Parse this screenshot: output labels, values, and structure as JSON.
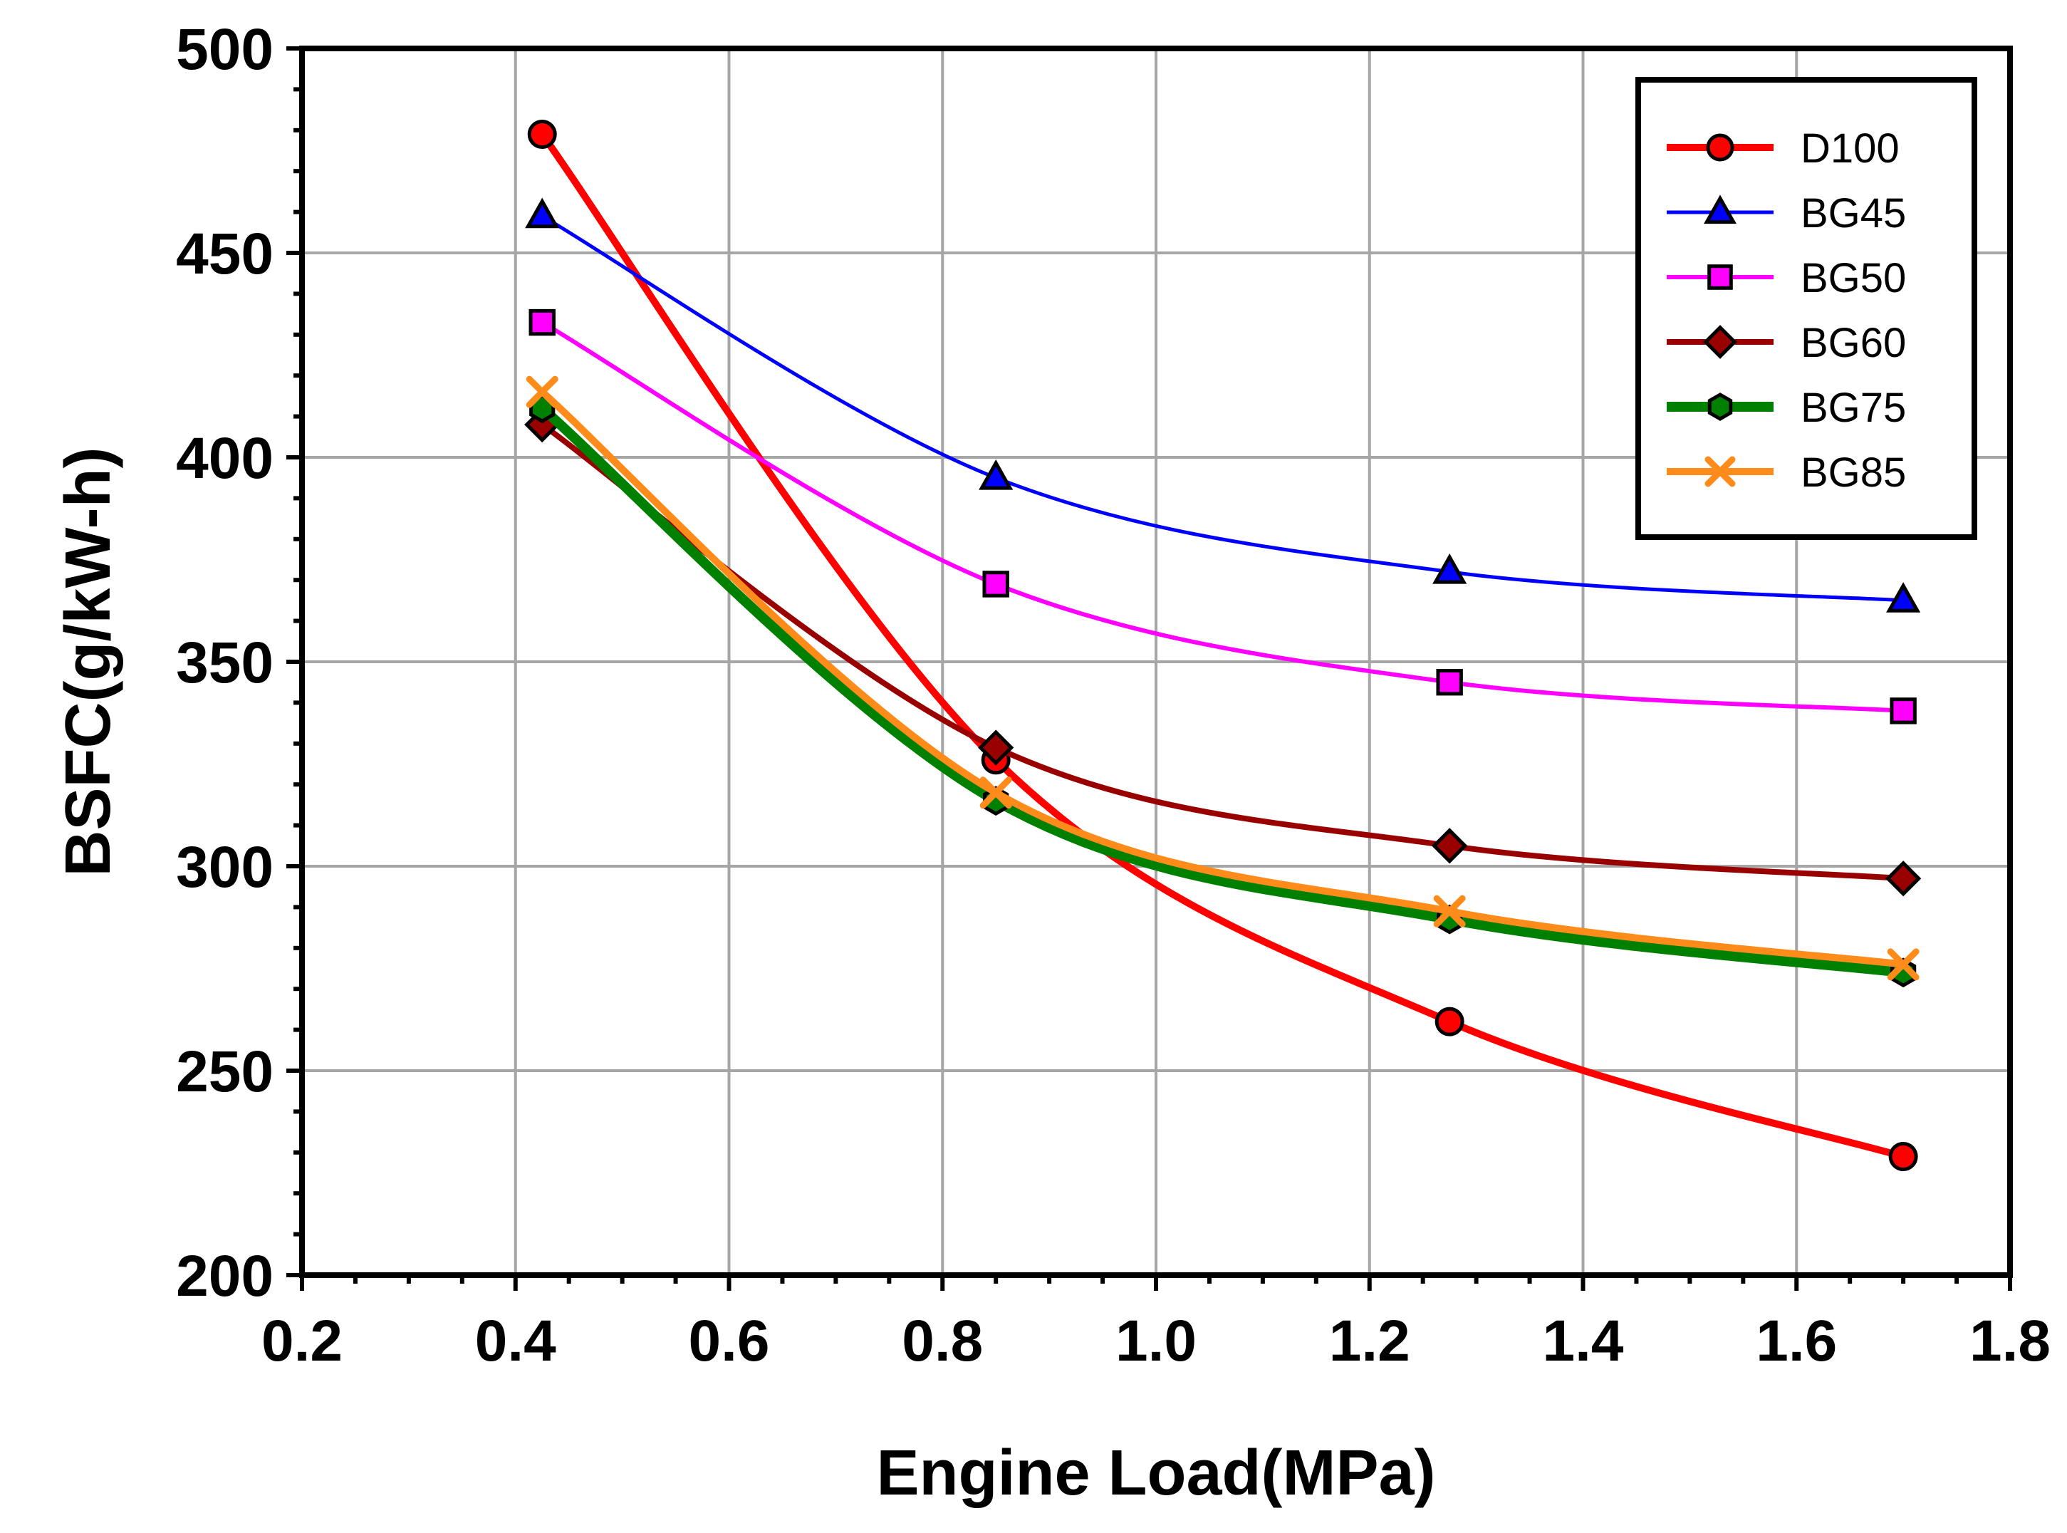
{
  "chart_data": {
    "type": "line",
    "title": "",
    "xlabel": "Engine Load(MPa)",
    "ylabel": "BSFC(g/kW-h)",
    "xlim": [
      0.2,
      1.8
    ],
    "ylim": [
      200,
      500
    ],
    "xticks": [
      "0.2",
      "0.4",
      "0.6",
      "0.8",
      "1.0",
      "1.2",
      "1.4",
      "1.6",
      "1.8"
    ],
    "yticks": [
      "200",
      "250",
      "300",
      "350",
      "400",
      "450",
      "500"
    ],
    "grid": true,
    "legend_position": "top-right",
    "series": [
      {
        "name": "D100",
        "color": "#ff0000",
        "marker": "circle",
        "x": [
          0.425,
          0.85,
          1.275,
          1.7
        ],
        "values": [
          479,
          326,
          262,
          229
        ]
      },
      {
        "name": "BG45",
        "color": "#0000ff",
        "marker": "triangle",
        "x": [
          0.425,
          0.85,
          1.275,
          1.7
        ],
        "values": [
          459,
          395,
          372,
          365
        ]
      },
      {
        "name": "BG50",
        "color": "#ff00ff",
        "marker": "square",
        "x": [
          0.425,
          0.85,
          1.275,
          1.7
        ],
        "values": [
          433,
          369,
          345,
          338
        ]
      },
      {
        "name": "BG60",
        "color": "#990000",
        "marker": "diamond",
        "x": [
          0.425,
          0.85,
          1.275,
          1.7
        ],
        "values": [
          408,
          329,
          305,
          297
        ]
      },
      {
        "name": "BG75",
        "color": "#008000",
        "marker": "hexagon",
        "x": [
          0.425,
          0.85,
          1.275,
          1.7
        ],
        "values": [
          412,
          316,
          287,
          274
        ]
      },
      {
        "name": "BG85",
        "color": "#ff8c1a",
        "marker": "x",
        "x": [
          0.425,
          0.85,
          1.275,
          1.7
        ],
        "values": [
          416,
          318,
          289,
          276
        ]
      }
    ]
  }
}
